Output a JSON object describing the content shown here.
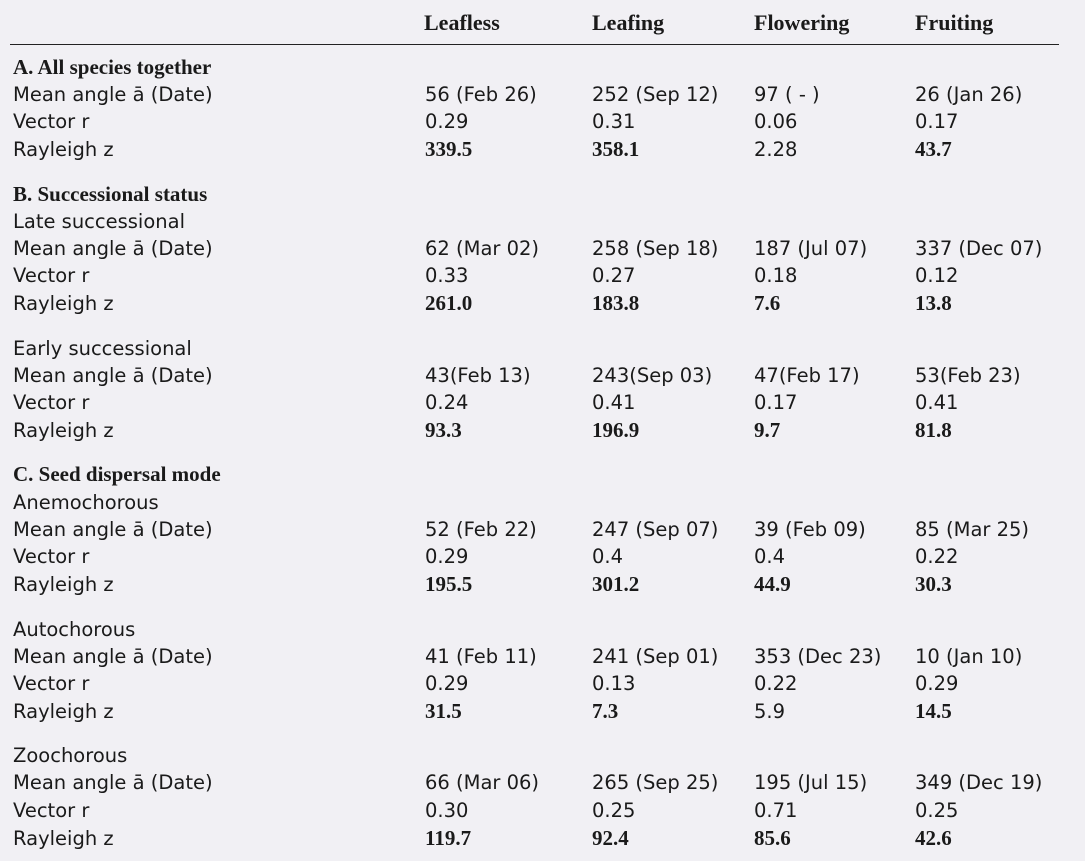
{
  "headers": [
    "Leafless",
    "Leafing",
    "Flowering",
    "Fruiting"
  ],
  "blocks": [
    {
      "section": "A. All species together",
      "rows": [
        {
          "label": "Mean angle ā (Date)",
          "values": [
            "56 (Feb 26)",
            "252 (Sep 12)",
            "97 ( - )",
            "26 (Jan 26)"
          ]
        },
        {
          "label": "Vector r",
          "values": [
            "0.29",
            "0.31",
            "0.06",
            "0.17"
          ]
        },
        {
          "label": "Rayleigh z",
          "values": [
            "339.5",
            "358.1",
            "2.28",
            "43.7"
          ]
        }
      ]
    },
    {
      "section": "B. Successional status",
      "subsection": "Late successional",
      "rows": [
        {
          "label": "Mean angle ā (Date)",
          "values": [
            "62 (Mar 02)",
            "258 (Sep 18)",
            "187 (Jul 07)",
            "337 (Dec 07)"
          ]
        },
        {
          "label": "Vector r",
          "values": [
            "0.33",
            "0.27",
            "0.18",
            "0.12"
          ]
        },
        {
          "label": "Rayleigh z",
          "values": [
            "261.0",
            "183.8",
            "7.6",
            "13.8"
          ]
        }
      ]
    },
    {
      "subsection": "Early successional",
      "rows": [
        {
          "label": "Mean angle ā (Date)",
          "values": [
            "43(Feb 13)",
            " 243(Sep 03)",
            "47(Feb 17)",
            "53(Feb 23)"
          ]
        },
        {
          "label": "Vector r",
          "values": [
            "0.24",
            "0.41",
            "0.17",
            "0.41"
          ]
        },
        {
          "label": "Rayleigh z",
          "values": [
            "93.3",
            "196.9",
            "9.7",
            "81.8"
          ]
        }
      ]
    },
    {
      "section": "C. Seed dispersal mode",
      "subsection": "Anemochorous",
      "rows": [
        {
          "label": "Mean angle ā (Date)",
          "values": [
            "52 (Feb 22)",
            "247 (Sep 07)",
            "39 (Feb 09)",
            "85 (Mar 25)"
          ]
        },
        {
          "label": "Vector r",
          "values": [
            "0.29",
            "0.4",
            "0.4",
            "0.22"
          ]
        },
        {
          "label": "Rayleigh z",
          "values": [
            "195.5",
            "301.2",
            "44.9",
            "30.3"
          ]
        }
      ]
    },
    {
      "subsection": "Autochorous",
      "rows": [
        {
          "label": "Mean angle ā (Date)",
          "values": [
            "41 (Feb 11)",
            " 241 (Sep 01)",
            "353 (Dec 23)",
            "10 (Jan 10)"
          ]
        },
        {
          "label": "Vector r",
          "values": [
            "0.29",
            "0.13",
            "0.22",
            "0.29"
          ]
        },
        {
          "label": "Rayleigh z",
          "values": [
            "31.5",
            "7.3",
            "5.9",
            "14.5"
          ]
        }
      ]
    },
    {
      "subsection": "Zoochorous",
      "rows": [
        {
          "label": "Mean angle ā (Date)",
          "values": [
            "66 (Mar 06)",
            "265 (Sep 25)",
            "195 (Jul 15)",
            "349 (Dec 19)"
          ]
        },
        {
          "label": "Vector r",
          "values": [
            "0.30",
            "0.25",
            "0.71",
            "0.25"
          ]
        },
        {
          "label": "Rayleigh z",
          "values": [
            "119.7",
            "92.4",
            "85.6",
            "42.6"
          ]
        }
      ]
    }
  ]
}
